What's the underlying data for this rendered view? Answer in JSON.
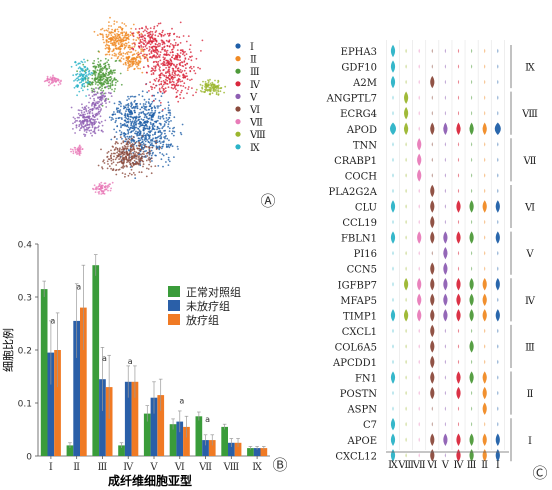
{
  "panel_labels": {
    "a": "Ⓐ",
    "b": "Ⓑ",
    "c": "Ⓒ"
  },
  "umap_legend": {
    "items": [
      {
        "label": "Ⅰ",
        "color": "#1f5fa8"
      },
      {
        "label": "Ⅱ",
        "color": "#f08a24"
      },
      {
        "label": "Ⅲ",
        "color": "#4e9a3a"
      },
      {
        "label": "Ⅳ",
        "color": "#d9273c"
      },
      {
        "label": "Ⅴ",
        "color": "#8e5fb3"
      },
      {
        "label": "Ⅵ",
        "color": "#8b4a3c"
      },
      {
        "label": "Ⅶ",
        "color": "#e87bb8"
      },
      {
        "label": "Ⅷ",
        "color": "#9bb62e"
      },
      {
        "label": "Ⅸ",
        "color": "#2bb3c7"
      }
    ]
  },
  "violin": {
    "genes": [
      "EPHA3",
      "GDF10",
      "A2M",
      "ANGPTL7",
      "ECRG4",
      "APOD",
      "TNN",
      "CRABP1",
      "COCH",
      "PLA2G2A",
      "CLU",
      "CCL19",
      "FBLN1",
      "PI16",
      "CCN5",
      "IGFBP7",
      "MFAP5",
      "TIMP1",
      "CXCL1",
      "COL6A5",
      "APCDD1",
      "FN1",
      "POSTN",
      "ASPN",
      "C7",
      "APOE",
      "CXCL12"
    ],
    "columns": [
      "Ⅸ",
      "Ⅷ",
      "Ⅶ",
      "Ⅵ",
      "Ⅴ",
      "Ⅳ",
      "Ⅲ",
      "Ⅱ",
      "Ⅰ"
    ],
    "column_colors": [
      "#2bb3c7",
      "#9bb62e",
      "#e87bb8",
      "#8b4a3c",
      "#8e5fb3",
      "#d9273c",
      "#4e9a3a",
      "#f08a24",
      "#1f5fa8"
    ],
    "groups": [
      {
        "label": "Ⅸ",
        "genes": [
          "EPHA3",
          "GDF10",
          "A2M"
        ]
      },
      {
        "label": "Ⅷ",
        "genes": [
          "ANGPTL7",
          "ECRG4",
          "APOD"
        ]
      },
      {
        "label": "Ⅶ",
        "genes": [
          "TNN",
          "CRABP1",
          "COCH"
        ]
      },
      {
        "label": "Ⅵ",
        "genes": [
          "PLA2G2A",
          "CLU",
          "CCL19"
        ]
      },
      {
        "label": "Ⅴ",
        "genes": [
          "FBLN1",
          "PI16",
          "CCN5"
        ]
      },
      {
        "label": "Ⅳ",
        "genes": [
          "IGFBP7",
          "MFAP5",
          "TIMP1"
        ]
      },
      {
        "label": "Ⅲ",
        "genes": [
          "CXCL1",
          "COL6A5",
          "APCDD1"
        ]
      },
      {
        "label": "Ⅱ",
        "genes": [
          "FN1",
          "POSTN",
          "ASPN"
        ]
      },
      {
        "label": "Ⅰ",
        "genes": [
          "C7",
          "APOE",
          "CXCL12"
        ]
      }
    ]
  },
  "chart_data": {
    "type": "bar",
    "title": "",
    "xlabel": "成纤维细胞亚型",
    "ylabel": "细胞比例",
    "ylim": [
      0,
      0.4
    ],
    "yticks": [
      "0",
      "0.1",
      "0.2",
      "0.3",
      "0.4"
    ],
    "categories": [
      "Ⅰ",
      "Ⅱ",
      "Ⅲ",
      "Ⅳ",
      "Ⅴ",
      "Ⅵ",
      "Ⅶ",
      "Ⅷ",
      "Ⅸ"
    ],
    "series": [
      {
        "name": "正常对照组",
        "color": "#3a9c3a",
        "values": [
          0.315,
          0.02,
          0.36,
          0.02,
          0.08,
          0.06,
          0.075,
          0.055,
          0.015
        ]
      },
      {
        "name": "未放疗组",
        "color": "#2a5fa8",
        "values": [
          0.195,
          0.255,
          0.145,
          0.14,
          0.11,
          0.065,
          0.03,
          0.025,
          0.015
        ]
      },
      {
        "name": "放疗组",
        "color": "#f07a24",
        "values": [
          0.2,
          0.28,
          0.13,
          0.14,
          0.115,
          0.055,
          0.03,
          0.025,
          0.015
        ]
      }
    ],
    "error": [
      [
        0.015,
        0.005,
        0.02,
        0.005,
        0.015,
        0.01,
        0.008,
        0.005,
        0.003
      ],
      [
        0.06,
        0.07,
        0.06,
        0.03,
        0.03,
        0.02,
        0.01,
        0.008,
        0.003
      ],
      [
        0.07,
        0.08,
        0.06,
        0.03,
        0.03,
        0.02,
        0.01,
        0.008,
        0.003
      ]
    ],
    "annotations": [
      {
        "category": "Ⅰ",
        "text": "a"
      },
      {
        "category": "Ⅱ",
        "text": "a"
      },
      {
        "category": "Ⅲ",
        "text": "a"
      },
      {
        "category": "Ⅳ",
        "text": "a"
      },
      {
        "category": "Ⅵ",
        "text": "a"
      },
      {
        "category": "Ⅶ",
        "text": "a"
      }
    ],
    "legend_position": "upper-right"
  }
}
